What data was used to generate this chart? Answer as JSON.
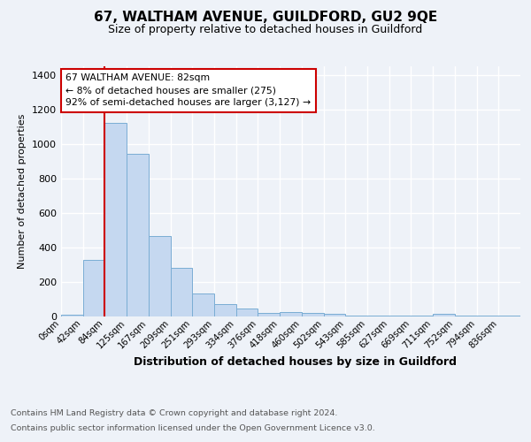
{
  "title": "67, WALTHAM AVENUE, GUILDFORD, GU2 9QE",
  "subtitle": "Size of property relative to detached houses in Guildford",
  "xlabel": "Distribution of detached houses by size in Guildford",
  "ylabel": "Number of detached properties",
  "bin_labels": [
    "0sqm",
    "42sqm",
    "84sqm",
    "125sqm",
    "167sqm",
    "209sqm",
    "251sqm",
    "293sqm",
    "334sqm",
    "376sqm",
    "418sqm",
    "460sqm",
    "502sqm",
    "543sqm",
    "585sqm",
    "627sqm",
    "669sqm",
    "711sqm",
    "752sqm",
    "794sqm",
    "836sqm"
  ],
  "bar_heights": [
    10,
    328,
    1120,
    940,
    465,
    280,
    130,
    68,
    45,
    20,
    22,
    20,
    15,
    3,
    3,
    3,
    3,
    14,
    2,
    2,
    2
  ],
  "bar_color": "#c5d8f0",
  "bar_edge_color": "#7aadd4",
  "property_line_color": "#cc0000",
  "annotation_text": "67 WALTHAM AVENUE: 82sqm\n← 8% of detached houses are smaller (275)\n92% of semi-detached houses are larger (3,127) →",
  "annotation_box_color": "#ffffff",
  "annotation_box_edge": "#cc0000",
  "ylim": [
    0,
    1450
  ],
  "yticks": [
    0,
    200,
    400,
    600,
    800,
    1000,
    1200,
    1400
  ],
  "footer_line1": "Contains HM Land Registry data © Crown copyright and database right 2024.",
  "footer_line2": "Contains public sector information licensed under the Open Government Licence v3.0.",
  "bg_color": "#eef2f8",
  "plot_bg_color": "#eef2f8",
  "grid_color": "#ffffff"
}
